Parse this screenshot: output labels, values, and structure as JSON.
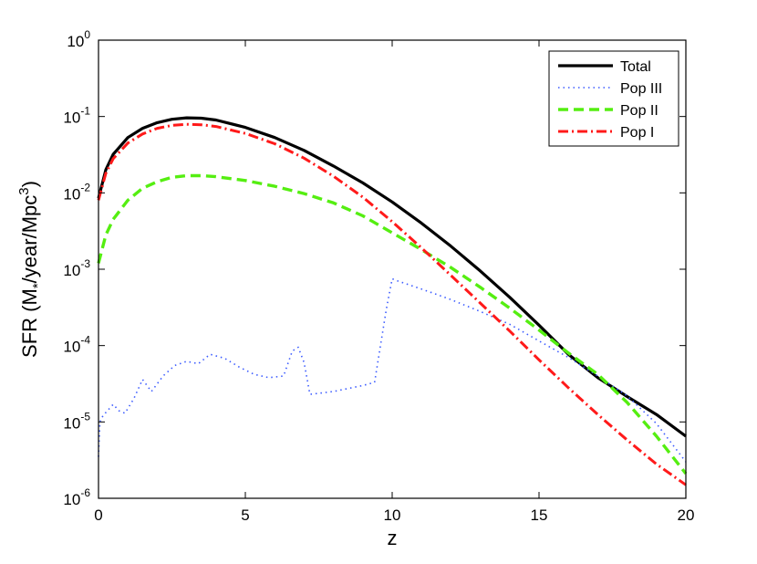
{
  "chart_data": {
    "type": "line",
    "xlabel": "z",
    "ylabel": "SFR (M*/year/Mpc3)",
    "ylabel_parts": {
      "pre": "SFR (M",
      "sub": "*",
      "mid": "/year/Mpc",
      "sup": "3",
      "post": ")"
    },
    "xlim": [
      0,
      20
    ],
    "ylim": [
      1e-06,
      1
    ],
    "yscale": "log",
    "grid": false,
    "legend_position": "top-right",
    "x_ticks": [
      {
        "value": 0,
        "label": "0"
      },
      {
        "value": 5,
        "label": "5"
      },
      {
        "value": 10,
        "label": "10"
      },
      {
        "value": 15,
        "label": "15"
      },
      {
        "value": 20,
        "label": "20"
      }
    ],
    "y_ticks": [
      {
        "value": 1e-06,
        "base": "10",
        "exp": "-6"
      },
      {
        "value": 1e-05,
        "base": "10",
        "exp": "-5"
      },
      {
        "value": 0.0001,
        "base": "10",
        "exp": "-4"
      },
      {
        "value": 0.001,
        "base": "10",
        "exp": "-3"
      },
      {
        "value": 0.01,
        "base": "10",
        "exp": "-2"
      },
      {
        "value": 0.1,
        "base": "10",
        "exp": "-1"
      },
      {
        "value": 1,
        "base": "10",
        "exp": "0"
      }
    ],
    "series": [
      {
        "name": "Total",
        "color": "#000000",
        "style": "solid",
        "x": [
          0,
          0.25,
          0.5,
          1,
          1.5,
          2,
          2.5,
          3,
          3.5,
          4,
          5,
          6,
          7,
          8,
          9,
          10,
          11,
          12,
          13,
          14,
          15,
          16,
          17,
          18,
          19,
          20
        ],
        "y": [
          0.0085,
          0.02,
          0.032,
          0.053,
          0.07,
          0.083,
          0.092,
          0.096,
          0.095,
          0.09,
          0.072,
          0.053,
          0.036,
          0.0225,
          0.0135,
          0.0076,
          0.004,
          0.002,
          0.00095,
          0.00043,
          0.000185,
          7.7e-05,
          3.8e-05,
          2.15e-05,
          1.25e-05,
          6.5e-06
        ]
      },
      {
        "name": "Pop III",
        "color": "#3b5bff",
        "style": "dotted",
        "x": [
          0,
          0.05,
          0.15,
          0.3,
          0.5,
          0.7,
          0.9,
          1.2,
          1.5,
          1.8,
          2.2,
          2.6,
          3.0,
          3.4,
          3.8,
          4.3,
          4.8,
          5.3,
          5.8,
          6.3,
          6.6,
          6.8,
          7.0,
          7.2,
          8.0,
          9.0,
          9.4,
          9.8,
          10.0,
          10.2,
          11.0,
          12.0,
          13.0,
          14.0,
          15.0,
          16.0,
          17.0,
          18.0,
          19.0,
          20.0
        ],
        "y": [
          3.5e-06,
          1e-05,
          1.2e-05,
          1.4e-05,
          1.7e-05,
          1.4e-05,
          1.3e-05,
          2e-05,
          3.6e-05,
          2.5e-05,
          4e-05,
          5.5e-05,
          6.2e-05,
          5.8e-05,
          7.7e-05,
          6.8e-05,
          5.2e-05,
          4.2e-05,
          3.8e-05,
          4e-05,
          8.5e-05,
          9.5e-05,
          6e-05,
          2.3e-05,
          2.5e-05,
          3e-05,
          3.3e-05,
          0.0003,
          0.00075,
          0.0007,
          0.00055,
          0.0004,
          0.00028,
          0.00019,
          0.000115,
          7e-05,
          4e-05,
          2.2e-05,
          9.5e-06,
          3e-06
        ]
      },
      {
        "name": "Pop II",
        "color": "#55ee11",
        "style": "dashed",
        "x": [
          0,
          0.25,
          0.5,
          1,
          1.5,
          2,
          2.5,
          3,
          3.5,
          4,
          5,
          6,
          7,
          8,
          9,
          10,
          11,
          12,
          13,
          14,
          15,
          16,
          17,
          18,
          19,
          20
        ],
        "y": [
          0.0012,
          0.0028,
          0.0045,
          0.008,
          0.0115,
          0.014,
          0.016,
          0.0168,
          0.0168,
          0.0163,
          0.0145,
          0.0122,
          0.0098,
          0.0074,
          0.005,
          0.003,
          0.0018,
          0.00105,
          0.00058,
          0.00031,
          0.00016,
          8e-05,
          4.2e-05,
          1.8e-05,
          6.5e-06,
          2.1e-06
        ]
      },
      {
        "name": "Pop I",
        "color": "#ff1a1a",
        "style": "dashdot",
        "x": [
          0,
          0.25,
          0.5,
          1,
          1.5,
          2,
          2.5,
          3,
          3.5,
          4,
          5,
          6,
          7,
          8,
          9,
          10,
          11,
          12,
          13,
          14,
          15,
          16,
          17,
          18,
          19,
          20
        ],
        "y": [
          0.008,
          0.018,
          0.028,
          0.045,
          0.059,
          0.07,
          0.0765,
          0.079,
          0.078,
          0.074,
          0.06,
          0.044,
          0.0285,
          0.0165,
          0.0088,
          0.0042,
          0.0019,
          0.00083,
          0.00036,
          0.000155,
          6.5e-05,
          2.8e-05,
          1.25e-05,
          5.8e-06,
          2.8e-06,
          1.5e-06
        ]
      }
    ]
  }
}
